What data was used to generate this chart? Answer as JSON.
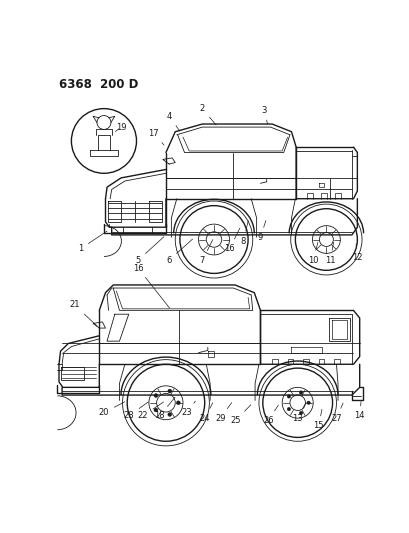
{
  "title_text": "6368  200 D",
  "bg_color": "#ffffff",
  "line_color": "#1a1a1a",
  "fig_width": 4.1,
  "fig_height": 5.33,
  "dpi": 100
}
